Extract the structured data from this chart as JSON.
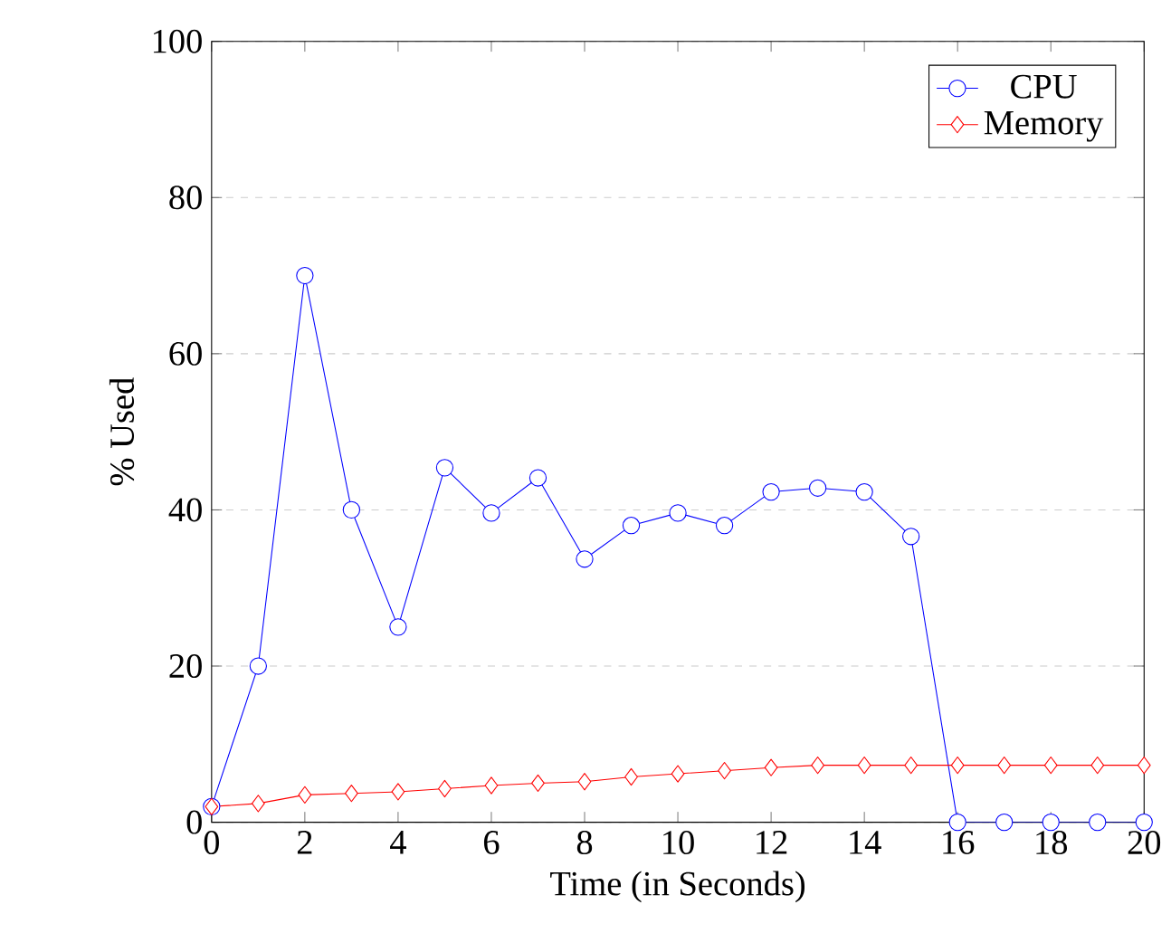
{
  "chart_data": {
    "type": "line",
    "xlabel": "Time (in Seconds)",
    "ylabel": "% Used",
    "x": [
      0,
      1,
      2,
      3,
      4,
      5,
      6,
      7,
      8,
      9,
      10,
      11,
      12,
      13,
      14,
      15,
      16,
      17,
      18,
      19,
      20
    ],
    "series": [
      {
        "name": "CPU",
        "color": "#0000ff",
        "marker": "circle",
        "values": [
          2,
          20,
          70,
          40,
          25,
          45.4,
          39.6,
          44.1,
          33.7,
          38,
          39.6,
          38,
          42.3,
          42.8,
          42.3,
          36.6,
          0,
          0,
          0,
          0,
          0
        ]
      },
      {
        "name": "Memory",
        "color": "#ff0000",
        "marker": "diamond",
        "values": [
          2,
          2.4,
          3.5,
          3.7,
          3.9,
          4.3,
          4.7,
          5,
          5.2,
          5.8,
          6.2,
          6.6,
          7,
          7.3,
          7.3,
          7.3,
          7.3,
          7.3,
          7.3,
          7.3,
          7.3
        ]
      }
    ],
    "xlim": [
      0,
      20
    ],
    "ylim": [
      0,
      100
    ],
    "xticks": [
      0,
      2,
      4,
      6,
      8,
      10,
      12,
      14,
      16,
      18,
      20
    ],
    "yticks": [
      0,
      20,
      40,
      60,
      80,
      100
    ],
    "grid": "y",
    "legend": "top right",
    "line_style": "solid"
  }
}
